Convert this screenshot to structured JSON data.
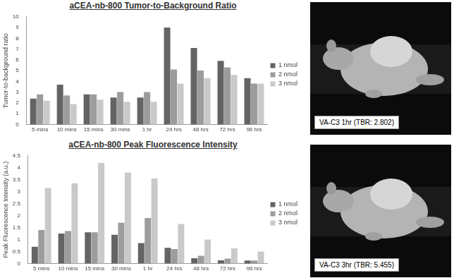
{
  "chart_data": [
    {
      "type": "bar",
      "title": "aCEA-nb-800 Tumor-to-Background Ratio",
      "y_label": "Tumor-to-background ratio",
      "categories": [
        "5 mins",
        "10 mins",
        "15 mins",
        "30 mins",
        "1 hr",
        "24 hrs",
        "48 hrs",
        "72 hrs",
        "96 hrs"
      ],
      "series": [
        {
          "name": "1 nmol",
          "color": "#646464",
          "values": [
            2.4,
            3.7,
            2.8,
            2.5,
            2.5,
            9.0,
            7.1,
            5.9,
            4.3
          ]
        },
        {
          "name": "2 nmol",
          "color": "#9c9c9c",
          "values": [
            2.8,
            2.7,
            2.8,
            3.0,
            3.0,
            5.1,
            5.0,
            5.3,
            3.8
          ]
        },
        {
          "name": "3 nmol",
          "color": "#c9c9c9",
          "values": [
            2.2,
            1.9,
            2.3,
            2.1,
            2.1,
            3.8,
            4.3,
            4.6,
            3.8
          ]
        }
      ],
      "ylim": [
        0,
        10
      ],
      "yticks": [
        0,
        1,
        2,
        3,
        4,
        5,
        6,
        7,
        8,
        9,
        10
      ],
      "grid": false,
      "legend": "right"
    },
    {
      "type": "bar",
      "title": "aCEA-nb-800 Peak Fluorescence Intensity",
      "y_label": "Peak Fluorescence Intensity (a.u.)",
      "categories": [
        "5 mins",
        "10 mins",
        "15 mins",
        "30 mins",
        "1 hr",
        "24 hrs",
        "48 hrs",
        "72 hrs",
        "96 hrs"
      ],
      "series": [
        {
          "name": "1 nmol",
          "color": "#646464",
          "values": [
            0.7,
            1.25,
            1.3,
            1.2,
            0.85,
            0.65,
            0.22,
            0.13,
            0.12
          ]
        },
        {
          "name": "2 nmol",
          "color": "#9c9c9c",
          "values": [
            1.4,
            1.35,
            1.3,
            1.7,
            1.9,
            0.6,
            0.32,
            0.2,
            0.12
          ]
        },
        {
          "name": "3 nmol",
          "color": "#c9c9c9",
          "values": [
            3.15,
            3.35,
            4.2,
            3.8,
            3.55,
            1.65,
            1.0,
            0.63,
            0.5
          ]
        }
      ],
      "ylim": [
        0,
        4.5
      ],
      "yticks": [
        0,
        0.5,
        1,
        1.5,
        2,
        2.5,
        3,
        3.5,
        4,
        4.5
      ],
      "grid": false,
      "legend": "right"
    }
  ],
  "images": [
    {
      "caption": "VA-C3 1hr (TBR: 2.802)"
    },
    {
      "caption": "VA-C3 3hr (TBR: 5.455)"
    }
  ]
}
